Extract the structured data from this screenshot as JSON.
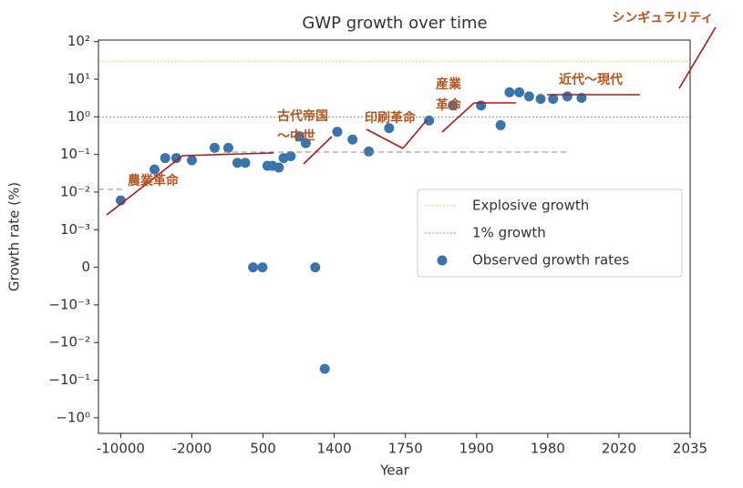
{
  "chart_data": {
    "type": "scatter",
    "title": "GWP growth over time",
    "x_label": "Year",
    "y_label": "Growth rate (%)",
    "yscale": "symlog",
    "linthresh": 0.001,
    "xlim": [
      -12500,
      2035
    ],
    "xticks": [
      -10000,
      -2000,
      500,
      1400,
      1750,
      1900,
      1980,
      2020,
      2035
    ],
    "ylim": [
      -2.6,
      110
    ],
    "yticks": [
      {
        "value": 100,
        "label": "10²"
      },
      {
        "value": 10,
        "label": "10¹"
      },
      {
        "value": 1,
        "label": "10⁰"
      },
      {
        "value": 0.1,
        "label": "10⁻¹"
      },
      {
        "value": 0.01,
        "label": "10⁻²"
      },
      {
        "value": 0.001,
        "label": "10⁻³"
      },
      0,
      {
        "value": -0.001,
        "label": "−10⁻³"
      },
      {
        "value": -0.01,
        "label": "−10⁻²"
      },
      {
        "value": -0.1,
        "label": "−10⁻¹"
      },
      {
        "value": -1,
        "label": "−10⁰"
      }
    ],
    "legend": "right",
    "reference_lines": [
      {
        "name": "Explosive growth",
        "value": 30,
        "color": "#f2c46a"
      },
      {
        "name": "1% growth",
        "value": 1,
        "color": "#6aa86a"
      }
    ],
    "series": [
      {
        "name": "Observed growth rates",
        "color": "#3b74ad",
        "x": [
          -10000,
          -6200,
          -5000,
          -3750,
          -2000,
          -1200,
          -720,
          -400,
          -125,
          150,
          480,
          555,
          620,
          700,
          760,
          850,
          960,
          1040,
          1160,
          1280,
          1415,
          1490,
          1570,
          1670,
          1800,
          1850,
          1905,
          1927,
          1937,
          1948,
          1959,
          1972,
          1983,
          1991,
          1999
        ],
        "values": [
          0.006,
          0.04,
          0.08,
          0.08,
          0.07,
          0.15,
          0.15,
          0.06,
          0.06,
          0,
          0,
          0.05,
          0.05,
          0.045,
          0.08,
          0.09,
          0.3,
          0.2,
          0,
          -0.05,
          0.4,
          0.25,
          0.12,
          0.5,
          0.8,
          2,
          2,
          0.6,
          4.5,
          4.5,
          3.5,
          3,
          3,
          3.5,
          3.2
        ]
      }
    ],
    "annotations": [
      "農業革命",
      "古代帝国",
      "〜中世",
      "印刷革命",
      "産業",
      "革命",
      "近代〜現代",
      "シンギュラリティ"
    ]
  }
}
